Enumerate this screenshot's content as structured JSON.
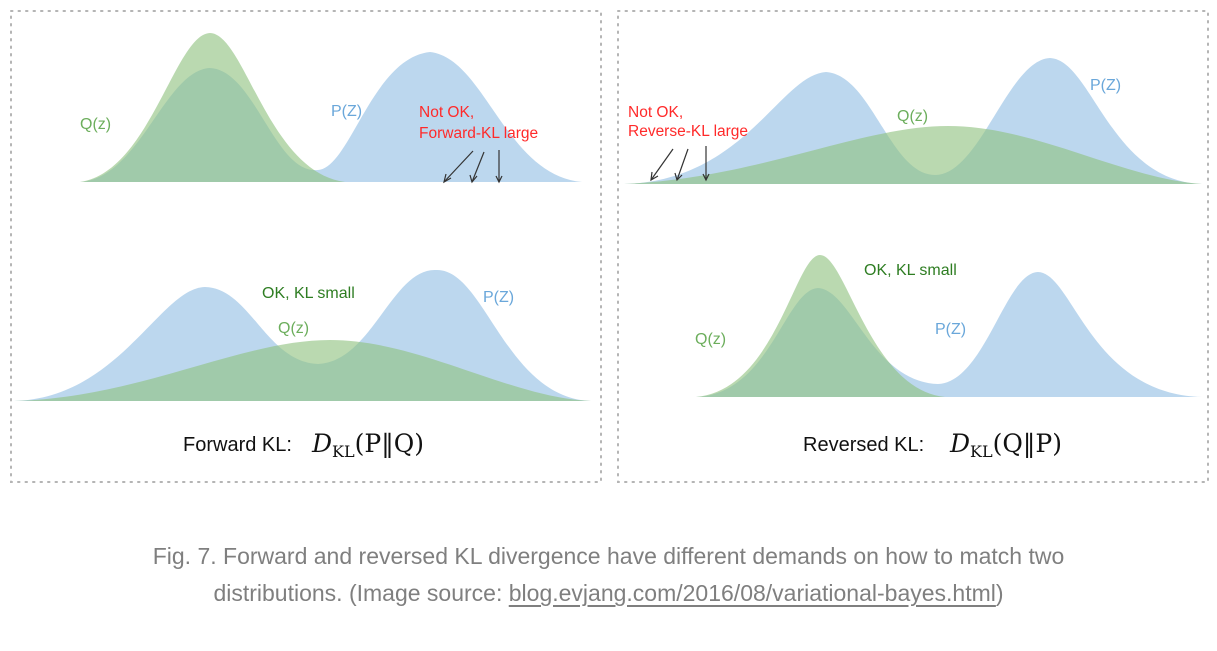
{
  "labels": {
    "q_z": "Q(z)",
    "p_z": "P(Z)",
    "not_ok_line1": "Not OK,",
    "forward_kl_large": "Forward-KL large",
    "reverse_kl_large": "Reverse-KL large",
    "ok_kl_small": "OK, KL small"
  },
  "formulas": {
    "forward_prefix": "Forward KL:",
    "reversed_prefix": "Reversed KL:",
    "d_symbol": "D",
    "kl_subscript": "KL",
    "forward_args": "(P‖Q)",
    "reversed_args": "(Q‖P)"
  },
  "caption": {
    "text_before_link": "Fig. 7. Forward and reversed KL divergence have different demands on how to match two distributions. (Image source: ",
    "link_text": "blog.evjang.com/2016/08/variational-bayes.html",
    "text_after_link": ")"
  },
  "colors": {
    "p_distribution": "#b5d3ec",
    "q_distribution": "#8fc27f",
    "warning_text": "#ff2a2a",
    "caption_text": "#7f7f7f"
  }
}
